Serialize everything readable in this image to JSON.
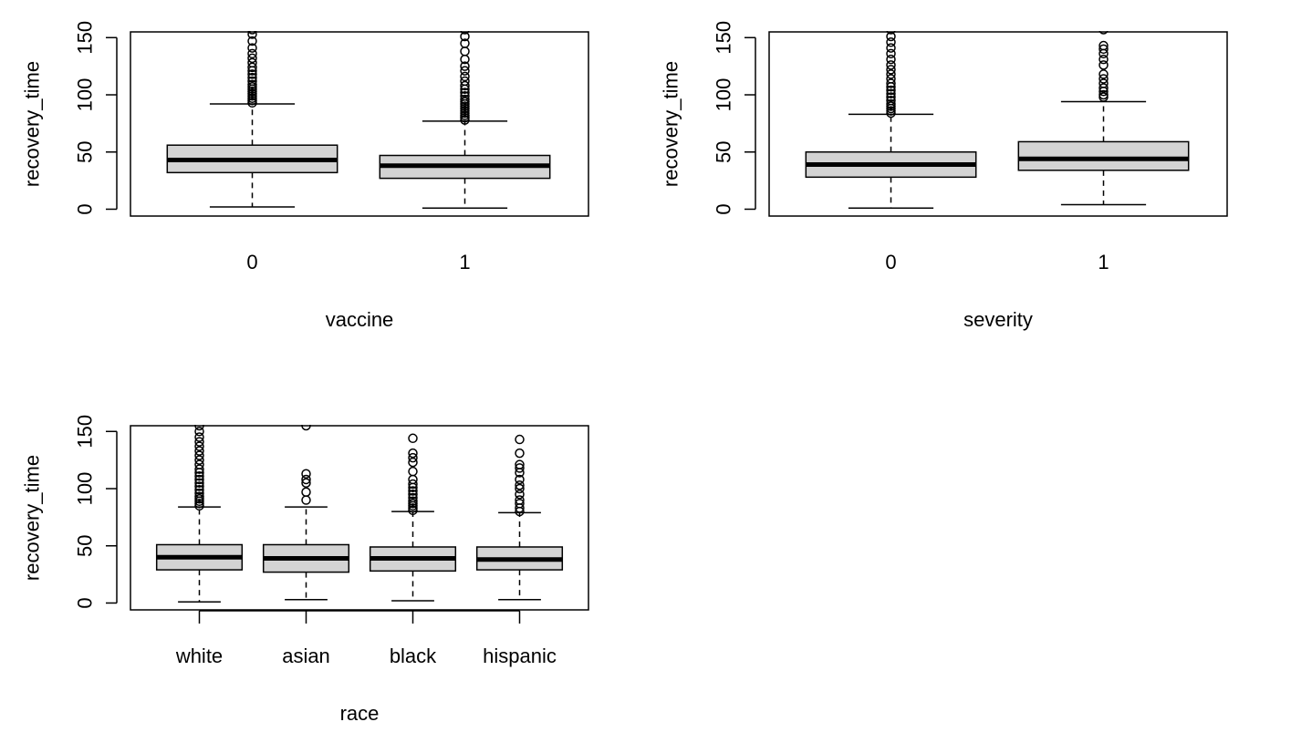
{
  "chart_data": [
    {
      "type": "boxplot",
      "xlabel": "vaccine",
      "ylabel": "recovery_time",
      "ylim": [
        -6,
        155
      ],
      "yticks": [
        0,
        50,
        100,
        150
      ],
      "categories": [
        "0",
        "1"
      ],
      "boxes": [
        {
          "min": 2,
          "q1": 32,
          "median": 43,
          "q3": 56,
          "max": 92,
          "outliers": [
            93,
            95,
            97,
            99,
            101,
            103,
            105,
            107,
            109,
            112,
            115,
            118,
            121,
            124,
            128,
            132,
            136,
            141,
            147,
            153,
            157
          ]
        },
        {
          "min": 1,
          "q1": 27,
          "median": 38,
          "q3": 47,
          "max": 77,
          "outliers": [
            78,
            80,
            82,
            84,
            86,
            88,
            90,
            92,
            94,
            96,
            99,
            102,
            105,
            108,
            112,
            116,
            121,
            125,
            131,
            138,
            145,
            151,
            157
          ]
        }
      ]
    },
    {
      "type": "boxplot",
      "xlabel": "severity",
      "ylabel": "recovery_time",
      "ylim": [
        -6,
        155
      ],
      "yticks": [
        0,
        50,
        100,
        150
      ],
      "categories": [
        "0",
        "1"
      ],
      "boxes": [
        {
          "min": 1,
          "q1": 28,
          "median": 39,
          "q3": 50,
          "max": 83,
          "outliers": [
            84,
            86,
            88,
            90,
            92,
            95,
            98,
            101,
            104,
            107,
            110,
            114,
            118,
            122,
            126,
            131,
            136,
            141,
            146,
            151,
            157
          ]
        },
        {
          "min": 4,
          "q1": 34,
          "median": 44,
          "q3": 59,
          "max": 94,
          "outliers": [
            98,
            100,
            103,
            106,
            110,
            114,
            118,
            126,
            131,
            136,
            140,
            143,
            157
          ]
        }
      ]
    },
    {
      "type": "boxplot",
      "xlabel": "race",
      "ylabel": "recovery_time",
      "ylim": [
        -6,
        155
      ],
      "yticks": [
        0,
        50,
        100,
        150
      ],
      "categories": [
        "white",
        "asian",
        "black",
        "hispanic"
      ],
      "boxes": [
        {
          "min": 1,
          "q1": 29,
          "median": 40,
          "q3": 51,
          "max": 84,
          "outliers": [
            85,
            87,
            89,
            91,
            93,
            96,
            99,
            102,
            105,
            108,
            111,
            114,
            117,
            121,
            125,
            129,
            133,
            137,
            141,
            145,
            150,
            155
          ]
        },
        {
          "min": 3,
          "q1": 27,
          "median": 39,
          "q3": 51,
          "max": 84,
          "outliers": [
            90,
            97,
            105,
            108,
            113,
            155
          ]
        },
        {
          "min": 2,
          "q1": 28,
          "median": 39,
          "q3": 49,
          "max": 80,
          "outliers": [
            81,
            83,
            85,
            87,
            89,
            92,
            95,
            98,
            101,
            104,
            108,
            115,
            123,
            127,
            131,
            144
          ]
        },
        {
          "min": 3,
          "q1": 29,
          "median": 38,
          "q3": 49,
          "max": 79,
          "outliers": [
            80,
            83,
            87,
            90,
            95,
            100,
            103,
            108,
            114,
            118,
            121,
            131,
            143
          ]
        }
      ]
    }
  ]
}
